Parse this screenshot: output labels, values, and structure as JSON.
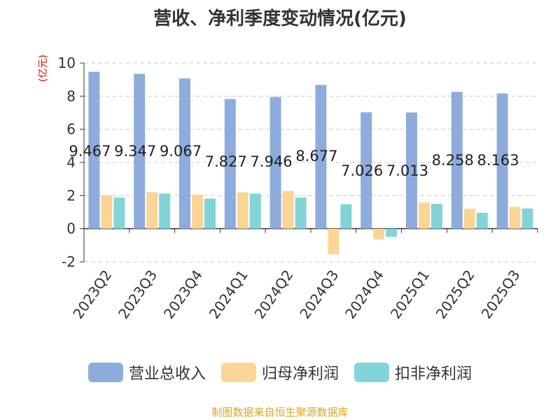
{
  "chart_data": {
    "type": "bar",
    "title": "营收、净利季度变动情况(亿元)",
    "ylabel": "(亿元)",
    "xlabel": "",
    "ylim": [
      -2,
      10
    ],
    "yticks": [
      -2,
      0,
      2,
      4,
      6,
      8,
      10
    ],
    "grid": true,
    "legend_position": "bottom",
    "categories": [
      "2023Q2",
      "2023Q3",
      "2023Q4",
      "2024Q1",
      "2024Q2",
      "2024Q3",
      "2024Q4",
      "2025Q1",
      "2025Q2",
      "2025Q3"
    ],
    "series": [
      {
        "name": "营业总收入",
        "color": "#8eacdb",
        "values": [
          9.467,
          9.347,
          9.067,
          7.827,
          7.946,
          8.677,
          7.026,
          7.013,
          8.258,
          8.163
        ],
        "labels": [
          "9.467",
          "9.347",
          "9.067",
          "7.827",
          "7.946",
          "8.677",
          "7.026",
          "7.013",
          "8.258",
          "8.163"
        ]
      },
      {
        "name": "归母净利润",
        "color": "#fbd595",
        "values": [
          2.02,
          2.2,
          2.05,
          2.2,
          2.28,
          -1.55,
          -0.65,
          1.58,
          1.2,
          1.32
        ]
      },
      {
        "name": "扣非净利润",
        "color": "#83d4d8",
        "values": [
          1.88,
          2.12,
          1.82,
          2.12,
          1.88,
          1.48,
          -0.5,
          1.5,
          0.96,
          1.22
        ]
      }
    ]
  },
  "footer": "制图数据来自恒生聚源数据库"
}
